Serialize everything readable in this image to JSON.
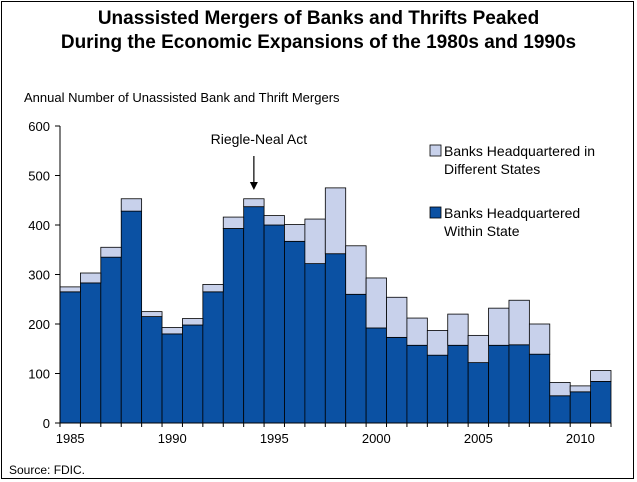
{
  "chart_data": {
    "type": "bar",
    "stacked": true,
    "title": "Unassisted Mergers of Banks and Thrifts Peaked",
    "subtitle": "During the Economic Expansions of the 1980s and 1990s",
    "ylabel": "Annual Number of Unassisted Bank and Thrift Mergers",
    "xlabel": "",
    "ylim": [
      0,
      600
    ],
    "yticks": [
      0,
      100,
      200,
      300,
      400,
      500,
      600
    ],
    "xticks": [
      1985,
      1990,
      1995,
      2000,
      2005,
      2010
    ],
    "categories": [
      1985,
      1986,
      1987,
      1988,
      1989,
      1990,
      1991,
      1992,
      1993,
      1994,
      1995,
      1996,
      1997,
      1998,
      1999,
      2000,
      2001,
      2002,
      2003,
      2004,
      2005,
      2006,
      2007,
      2008,
      2009,
      2010,
      2011
    ],
    "series": [
      {
        "name": "Banks Headquartered Within State",
        "color": "#0b51a3",
        "values": [
          265,
          283,
          335,
          428,
          215,
          180,
          198,
          265,
          393,
          437,
          400,
          367,
          322,
          342,
          260,
          192,
          173,
          157,
          137,
          157,
          122,
          157,
          158,
          139,
          55,
          63,
          84
        ]
      },
      {
        "name": "Banks Headquartered in Different States",
        "color": "#c8d1eb",
        "values": [
          10,
          20,
          20,
          25,
          10,
          13,
          13,
          15,
          23,
          16,
          19,
          34,
          90,
          133,
          98,
          101,
          81,
          55,
          50,
          63,
          55,
          75,
          90,
          61,
          27,
          12,
          22
        ]
      }
    ],
    "legend_position": "top-right",
    "grid": false,
    "annotation": {
      "label": "Riegle-Neal Act",
      "year": 1994
    },
    "source": "Source: FDIC."
  }
}
